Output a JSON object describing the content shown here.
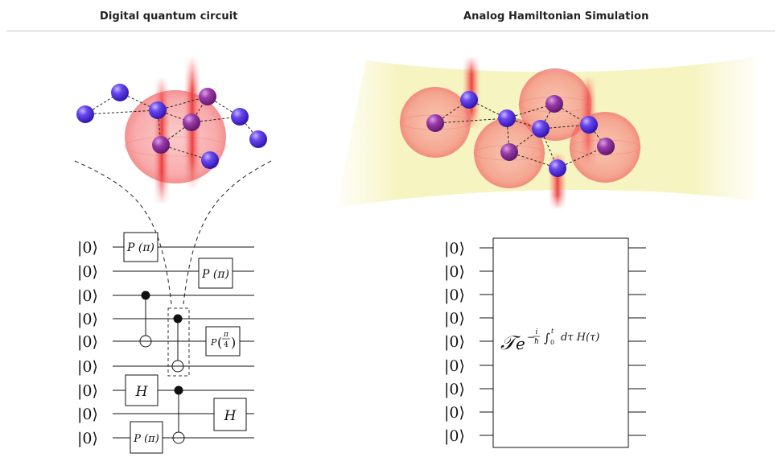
{
  "header": {
    "left_title": "Digital quantum circuit",
    "right_title": "Analog Hamiltonian Simulation"
  },
  "digital": {
    "qubit_labels": [
      "|0⟩",
      "|0⟩",
      "|0⟩",
      "|0⟩",
      "|0⟩",
      "|0⟩",
      "|0⟩",
      "|0⟩",
      "|0⟩"
    ],
    "gates": {
      "p_pi_1": "P (π)",
      "p_pi_2": "P (π)",
      "p_pi_3": "P (π)",
      "p_pi4_prefix": "P",
      "p_pi4_num": "π",
      "p_pi4_den": "4",
      "h_1": "H",
      "h_2": "H"
    }
  },
  "analog": {
    "qubit_labels": [
      "|0⟩",
      "|0⟩",
      "|0⟩",
      "|0⟩",
      "|0⟩",
      "|0⟩",
      "|0⟩",
      "|0⟩",
      "|0⟩"
    ],
    "unitary": {
      "T": "𝒯",
      "e": "e",
      "exp_minus": "−",
      "exp_i": "i",
      "exp_hbar": "ħ",
      "exp_int": "∫",
      "exp_int_lower": "0",
      "exp_int_upper": "t",
      "exp_body": "dτ H(τ)"
    }
  },
  "colors": {
    "atom_blue": "#4a2ee0",
    "atom_purple": "#8a2a9e",
    "blob_red": "#f26a6a",
    "beam_red": "#e63a3a",
    "laser_yellow": "#f6f4bd"
  }
}
